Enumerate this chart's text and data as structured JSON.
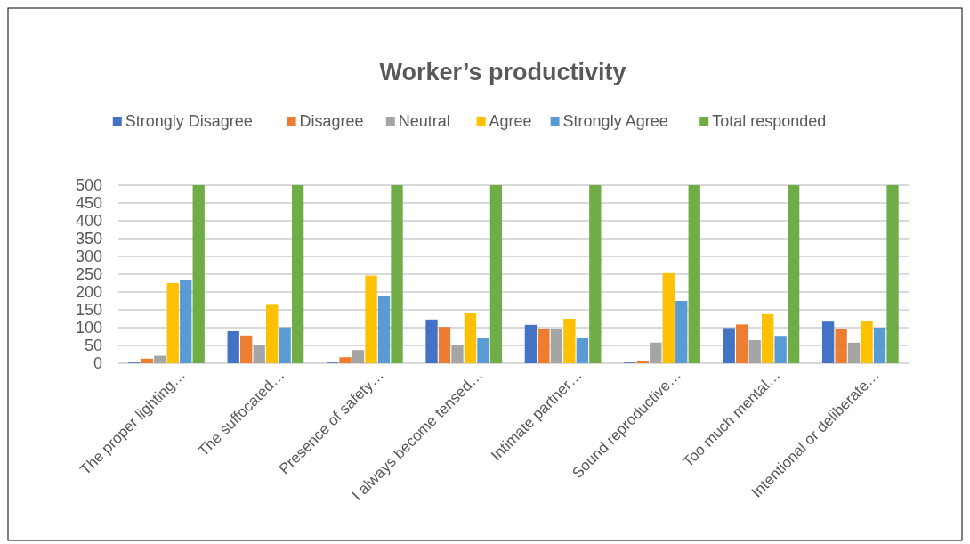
{
  "chart_data": {
    "type": "bar",
    "title": "Worker’s productivity",
    "categories": [
      "The proper lighting…",
      "The suffocated…",
      "Presence of safety…",
      "I always become tensed…",
      "Intimate partner…",
      "Sound reproductive…",
      "Too much mental…",
      "Intentional or deliberate…"
    ],
    "series": [
      {
        "name": "Strongly Disagree",
        "color": "#4472c4",
        "values": [
          2,
          90,
          2,
          123,
          108,
          2,
          99,
          117
        ]
      },
      {
        "name": "Disagree",
        "color": "#ed7d31",
        "values": [
          13,
          78,
          17,
          102,
          95,
          6,
          109,
          95
        ]
      },
      {
        "name": "Neutral",
        "color": "#a5a5a5",
        "values": [
          21,
          50,
          37,
          50,
          95,
          58,
          65,
          58
        ]
      },
      {
        "name": "Agree",
        "color": "#ffc000",
        "values": [
          225,
          164,
          246,
          140,
          125,
          253,
          138,
          119
        ]
      },
      {
        "name": "Strongly Agree",
        "color": "#5b9bd5",
        "values": [
          234,
          101,
          189,
          70,
          70,
          175,
          77,
          100
        ]
      },
      {
        "name": "Total responded",
        "color": "#70ad47",
        "values": [
          500,
          500,
          500,
          500,
          500,
          500,
          500,
          500
        ]
      }
    ],
    "ylim": [
      0,
      500
    ],
    "yticks": [
      0,
      50,
      100,
      150,
      200,
      250,
      300,
      350,
      400,
      450,
      500
    ],
    "grid": "y",
    "legend": "top"
  }
}
